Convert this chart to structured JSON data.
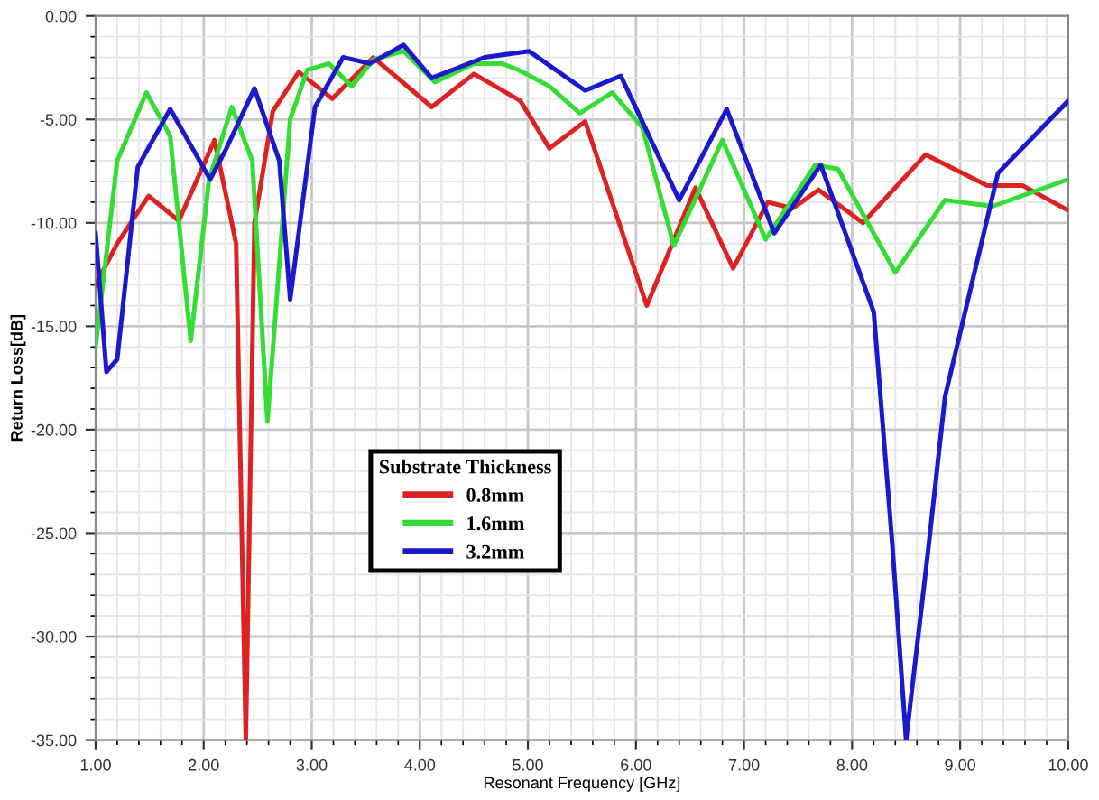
{
  "chart_data": {
    "type": "line",
    "xlabel": "Resonant Frequency [GHz]",
    "ylabel": "Return Loss[dB]",
    "legend_title": "Substrate Thickness",
    "legend": "lower center",
    "grid": true,
    "marker": "none",
    "line_style": "solid",
    "xlim": [
      1,
      10
    ],
    "ylim": [
      -35,
      0
    ],
    "xticks": [
      {
        "value": 1,
        "label": "1.00"
      },
      {
        "value": 2,
        "label": "2.00"
      },
      {
        "value": 3,
        "label": "3.00"
      },
      {
        "value": 4,
        "label": "4.00"
      },
      {
        "value": 5,
        "label": "5.00"
      },
      {
        "value": 6,
        "label": "6.00"
      },
      {
        "value": 7,
        "label": "7.00"
      },
      {
        "value": 8,
        "label": "8.00"
      },
      {
        "value": 9,
        "label": "9.00"
      },
      {
        "value": 10,
        "label": "10.00"
      }
    ],
    "yticks": [
      {
        "value": -35,
        "label": "-35.00"
      },
      {
        "value": -30,
        "label": "-30.00"
      },
      {
        "value": -25,
        "label": "-25.00"
      },
      {
        "value": -20,
        "label": "-20.00"
      },
      {
        "value": -15,
        "label": "-15.00"
      },
      {
        "value": -10,
        "label": "-10.00"
      },
      {
        "value": -5,
        "label": "-5.00"
      },
      {
        "value": 0,
        "label": "0.00"
      }
    ],
    "series": [
      {
        "name": "0.8mm",
        "color": "#dd2222",
        "x": [
          1.0,
          1.2,
          1.49,
          1.77,
          2.1,
          2.3,
          2.39,
          2.47,
          2.64,
          2.88,
          3.19,
          3.57,
          4.11,
          4.5,
          4.93,
          5.2,
          5.53,
          6.1,
          6.55,
          6.9,
          7.22,
          7.45,
          7.69,
          8.1,
          8.68,
          9.25,
          9.58,
          10.0
        ],
        "values": [
          -13.0,
          -11.0,
          -8.7,
          -9.9,
          -6.0,
          -11.0,
          -35.0,
          -10.0,
          -4.6,
          -2.7,
          -4.0,
          -2.0,
          -4.4,
          -2.8,
          -4.1,
          -6.4,
          -5.1,
          -14.0,
          -8.3,
          -12.2,
          -9.0,
          -9.3,
          -8.4,
          -10.0,
          -6.7,
          -8.2,
          -8.2,
          -9.4
        ]
      },
      {
        "name": "1.6mm",
        "color": "#33dd33",
        "x": [
          1.0,
          1.2,
          1.47,
          1.69,
          1.88,
          2.05,
          2.26,
          2.45,
          2.59,
          2.8,
          2.96,
          3.16,
          3.37,
          3.57,
          3.85,
          4.14,
          4.5,
          4.76,
          4.91,
          5.2,
          5.48,
          5.78,
          6.06,
          6.35,
          6.8,
          7.2,
          7.66,
          7.87,
          8.4,
          8.86,
          9.3,
          10.0
        ],
        "values": [
          -16.0,
          -7.0,
          -3.7,
          -5.8,
          -15.7,
          -7.9,
          -4.4,
          -7.0,
          -19.6,
          -5.0,
          -2.6,
          -2.3,
          -3.4,
          -2.1,
          -1.7,
          -3.2,
          -2.3,
          -2.3,
          -2.6,
          -3.4,
          -4.7,
          -3.7,
          -5.4,
          -11.1,
          -6.0,
          -10.8,
          -7.2,
          -7.4,
          -12.4,
          -8.9,
          -9.2,
          -7.9
        ]
      },
      {
        "name": "3.2mm",
        "color": "#1a1acc",
        "x": [
          1.0,
          1.1,
          1.2,
          1.39,
          1.69,
          2.06,
          2.21,
          2.47,
          2.7,
          2.8,
          3.03,
          3.29,
          3.54,
          3.85,
          4.11,
          4.6,
          5.01,
          5.53,
          5.86,
          6.4,
          6.84,
          7.28,
          7.71,
          8.2,
          8.37,
          8.5,
          8.7,
          8.86,
          9.35,
          10.0
        ],
        "values": [
          -10.5,
          -17.2,
          -16.6,
          -7.3,
          -4.5,
          -7.9,
          -6.4,
          -3.5,
          -7.0,
          -13.7,
          -4.4,
          -2.0,
          -2.3,
          -1.4,
          -3.0,
          -2.0,
          -1.7,
          -3.6,
          -2.9,
          -8.9,
          -4.5,
          -10.5,
          -7.2,
          -14.3,
          -25.4,
          -35.0,
          -26.0,
          -18.4,
          -7.6,
          -4.1
        ]
      }
    ]
  }
}
